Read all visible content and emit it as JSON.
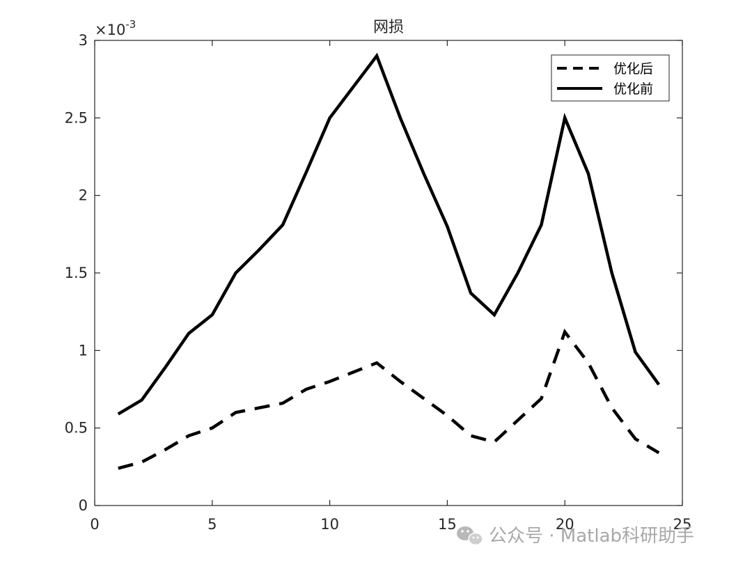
{
  "chart_data": {
    "type": "line",
    "title": "网损",
    "xlabel": "",
    "ylabel": "",
    "xlim": [
      0,
      25
    ],
    "ylim": [
      0,
      0.003
    ],
    "xticks": [
      0,
      5,
      10,
      15,
      20,
      25
    ],
    "yticks": [
      0,
      0.0005,
      0.001,
      0.0015,
      0.002,
      0.0025,
      0.003
    ],
    "ytick_labels": [
      "0",
      "0.5",
      "1",
      "1.5",
      "2",
      "2.5",
      "3"
    ],
    "xtick_labels": [
      "0",
      "5",
      "10",
      "15",
      "20",
      "25"
    ],
    "y_exponent_label": {
      "base": "×10",
      "power": "-3"
    },
    "grid": false,
    "legend_position": "top-right",
    "x": [
      1,
      2,
      3,
      4,
      5,
      6,
      7,
      8,
      9,
      10,
      11,
      12,
      13,
      14,
      15,
      16,
      17,
      18,
      19,
      20,
      21,
      22,
      23,
      24
    ],
    "series": [
      {
        "name": "优化后",
        "style": "dashed",
        "color": "#000000",
        "values": [
          0.00024,
          0.00028,
          0.00036,
          0.00045,
          0.0005,
          0.0006,
          0.00063,
          0.00066,
          0.00075,
          0.0008,
          0.00086,
          0.00092,
          0.0008,
          0.00069,
          0.00058,
          0.00045,
          0.00041,
          0.00055,
          0.00069,
          0.00112,
          0.00092,
          0.00063,
          0.00043,
          0.00034
        ]
      },
      {
        "name": "优化前",
        "style": "solid",
        "color": "#000000",
        "values": [
          0.00059,
          0.00068,
          0.00089,
          0.00111,
          0.00123,
          0.0015,
          0.00165,
          0.00181,
          0.00215,
          0.0025,
          0.0027,
          0.0029,
          0.0025,
          0.00214,
          0.0018,
          0.00137,
          0.00123,
          0.0015,
          0.00181,
          0.0025,
          0.00214,
          0.0015,
          0.00099,
          0.00078
        ]
      }
    ]
  },
  "watermark": {
    "icon": "wechat-icon",
    "text": "公众号 · Matlab科研助手"
  }
}
